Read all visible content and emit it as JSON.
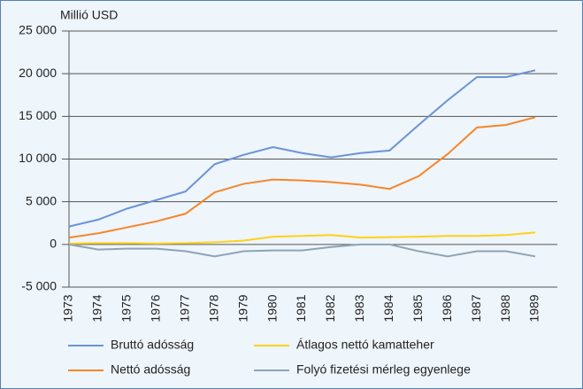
{
  "chart_data": {
    "type": "line",
    "y_axis_label": "Millió USD",
    "categories": [
      "1973",
      "1974",
      "1975",
      "1976",
      "1977",
      "1978",
      "1979",
      "1980",
      "1981",
      "1982",
      "1983",
      "1984",
      "1985",
      "1986",
      "1987",
      "1988",
      "1989"
    ],
    "series": [
      {
        "name": "Bruttó adósság",
        "color": "#6b93d6",
        "values": [
          2100,
          2900,
          4200,
          5200,
          6200,
          9400,
          10500,
          11400,
          10700,
          10200,
          10700,
          11000,
          14000,
          16900,
          19600,
          19600,
          20400
        ]
      },
      {
        "name": "Átlagos nettó kamatteher",
        "color": "#ffd21a",
        "values": [
          100,
          150,
          150,
          100,
          150,
          250,
          450,
          900,
          1000,
          1100,
          800,
          850,
          900,
          1000,
          1000,
          1100,
          1400
        ]
      },
      {
        "name": "Nettó adósság",
        "color": "#f5862a",
        "values": [
          800,
          1300,
          2000,
          2700,
          3600,
          6100,
          7100,
          7600,
          7500,
          7300,
          7000,
          6500,
          8000,
          10600,
          13700,
          14000,
          14900
        ]
      },
      {
        "name": "Folyó fizetési mérleg egyenlege",
        "color": "#8ea4b4",
        "values": [
          0,
          -600,
          -500,
          -500,
          -800,
          -1400,
          -800,
          -700,
          -700,
          -300,
          0,
          0,
          -800,
          -1400,
          -800,
          -800,
          -1400
        ]
      }
    ],
    "ylim": [
      -5000,
      25000
    ],
    "yticks": [
      {
        "value": -5000,
        "label": "-5 000"
      },
      0,
      {
        "value": 5000,
        "label": "5 000"
      },
      {
        "value": 10000,
        "label": "10 000"
      },
      {
        "value": 15000,
        "label": "15 000"
      },
      {
        "value": 20000,
        "label": "20 000"
      },
      {
        "value": 25000,
        "label": "25 000"
      }
    ],
    "grid": true
  }
}
